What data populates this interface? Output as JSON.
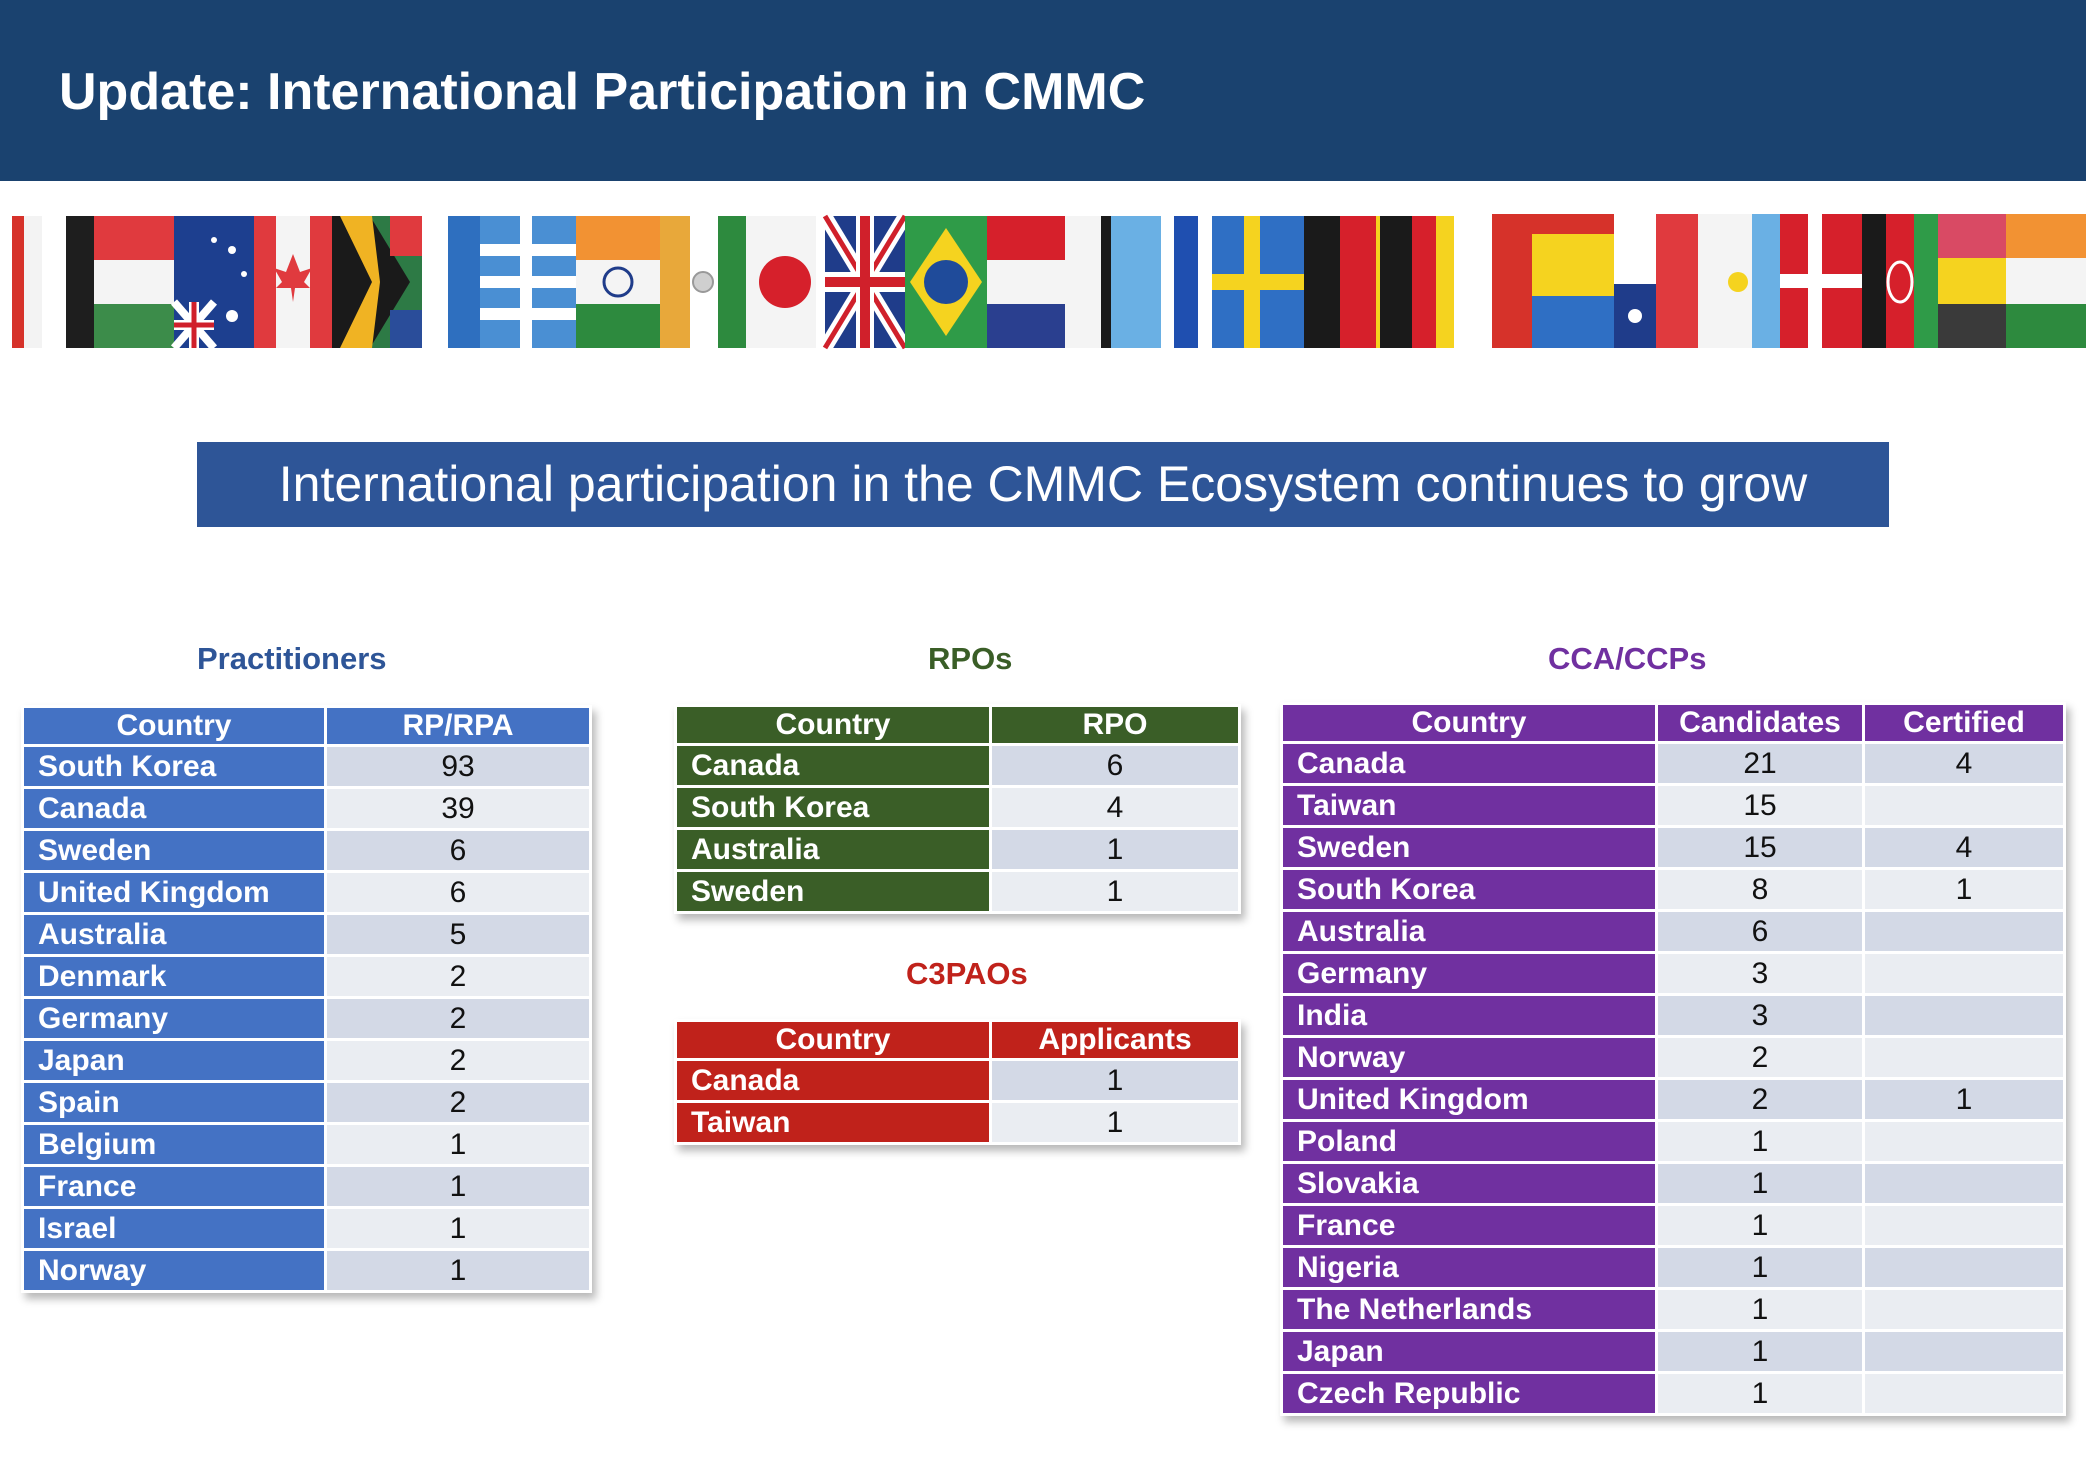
{
  "header": {
    "title": "Update: International Participation in CMMC"
  },
  "banner": {
    "text": "International participation in the CMMC Ecosystem continues to grow"
  },
  "flags": {
    "description_icon": "flags-strip-image"
  },
  "practitioners": {
    "title": "Practitioners",
    "headers": [
      "Country",
      "RP/RPA"
    ],
    "rows": [
      [
        "South Korea",
        "93"
      ],
      [
        "Canada",
        "39"
      ],
      [
        "Sweden",
        "6"
      ],
      [
        "United Kingdom",
        "6"
      ],
      [
        "Australia",
        "5"
      ],
      [
        "Denmark",
        "2"
      ],
      [
        "Germany",
        "2"
      ],
      [
        "Japan",
        "2"
      ],
      [
        "Spain",
        "2"
      ],
      [
        "Belgium",
        "1"
      ],
      [
        "France",
        "1"
      ],
      [
        "Israel",
        "1"
      ],
      [
        "Norway",
        "1"
      ]
    ]
  },
  "rpos": {
    "title": "RPOs",
    "headers": [
      "Country",
      "RPO"
    ],
    "rows": [
      [
        "Canada",
        "6"
      ],
      [
        "South Korea",
        "4"
      ],
      [
        "Australia",
        "1"
      ],
      [
        "Sweden",
        "1"
      ]
    ]
  },
  "c3paos": {
    "title": "C3PAOs",
    "headers": [
      "Country",
      "Applicants"
    ],
    "rows": [
      [
        "Canada",
        "1"
      ],
      [
        "Taiwan",
        "1"
      ]
    ]
  },
  "cca_ccps": {
    "title": "CCA/CCPs",
    "headers": [
      "Country",
      "Candidates",
      "Certified"
    ],
    "rows": [
      [
        "Canada",
        "21",
        "4"
      ],
      [
        "Taiwan",
        "15",
        ""
      ],
      [
        "Sweden",
        "15",
        "4"
      ],
      [
        "South Korea",
        "8",
        "1"
      ],
      [
        "Australia",
        "6",
        ""
      ],
      [
        "Germany",
        "3",
        ""
      ],
      [
        "India",
        "3",
        ""
      ],
      [
        "Norway",
        "2",
        ""
      ],
      [
        "United Kingdom",
        "2",
        "1"
      ],
      [
        "Poland",
        "1",
        ""
      ],
      [
        "Slovakia",
        "1",
        ""
      ],
      [
        "France",
        "1",
        ""
      ],
      [
        "Nigeria",
        "1",
        ""
      ],
      [
        "The Netherlands",
        "1",
        ""
      ],
      [
        "Japan",
        "1",
        ""
      ],
      [
        "Czech Republic",
        "1",
        ""
      ]
    ]
  }
}
